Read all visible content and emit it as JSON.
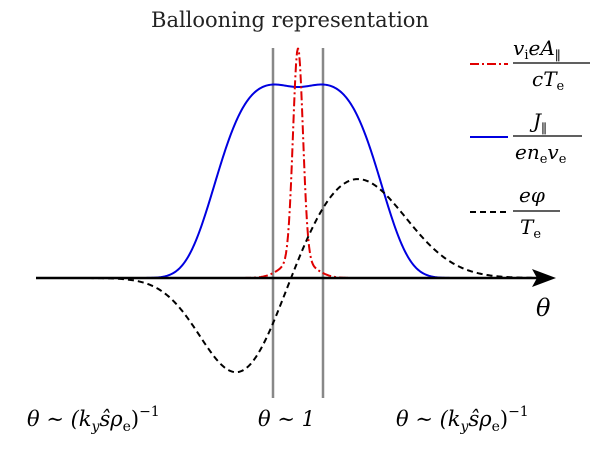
{
  "title": "Ballooning representation",
  "axis": {
    "label": "θ"
  },
  "legend": [
    {
      "id": "vA",
      "color": "#e00000",
      "style": "dash-dot",
      "numerator": [
        "v",
        "i",
        "eA",
        "∥"
      ],
      "denominator": [
        "cT",
        "e"
      ]
    },
    {
      "id": "J",
      "color": "#0000e0",
      "style": "solid",
      "numerator": [
        "J",
        "∥"
      ],
      "denominator": [
        "en",
        "e",
        "v",
        "e"
      ]
    },
    {
      "id": "phi",
      "color": "#000000",
      "style": "dashed",
      "numerator": [
        "eφ"
      ],
      "denominator": [
        "T",
        "e"
      ]
    }
  ],
  "bottom_labels": {
    "left": {
      "pre": "θ ∼ (k",
      "s1": "y",
      "mid": "ŝρ",
      "s2": "e",
      "post": ")",
      "sup": "−1"
    },
    "center": "θ ∼ 1",
    "right": {
      "pre": "θ ∼ (k",
      "s1": "y",
      "mid": "ŝρ",
      "s2": "e",
      "post": ")",
      "sup": "−1"
    }
  },
  "colors": {
    "axis": "#000000",
    "vertical_lines": "#888888"
  }
}
